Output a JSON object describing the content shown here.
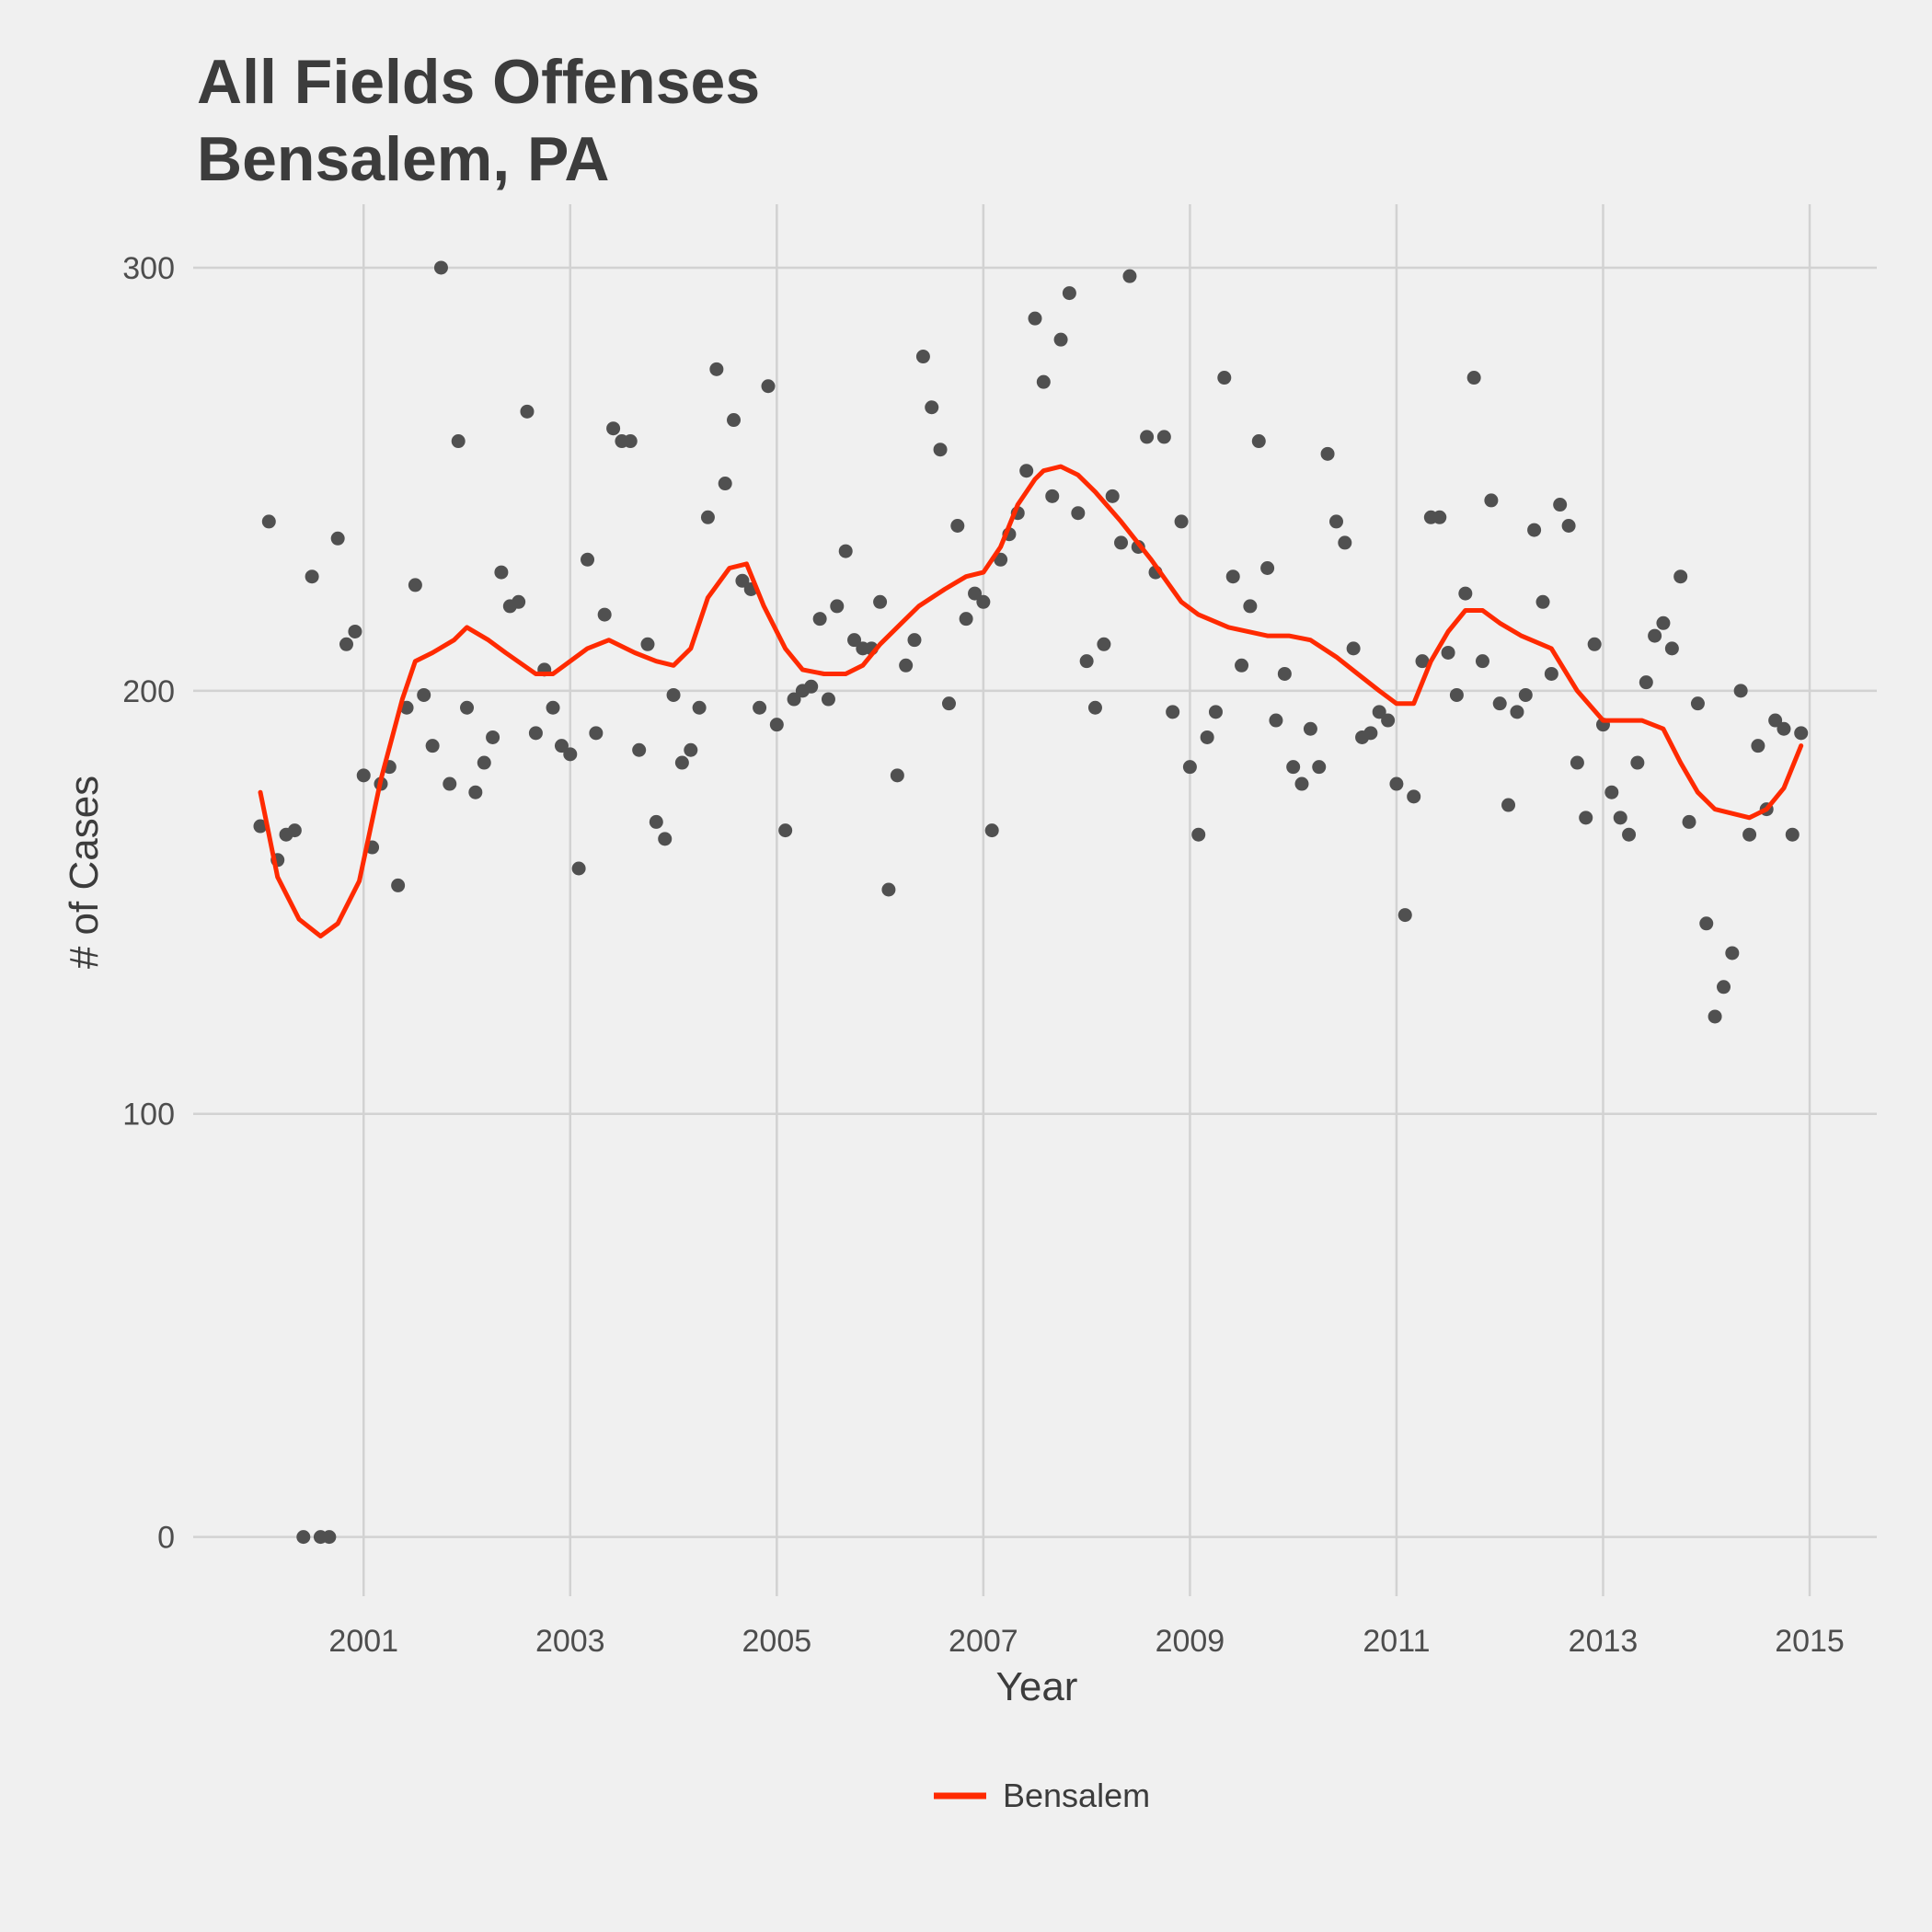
{
  "chart_data": {
    "type": "scatter",
    "title": "All Fields Offenses",
    "subtitle": "Bensalem, PA",
    "xlabel": "Year",
    "ylabel": "# of Cases",
    "xlim": [
      1999.35,
      2015.65
    ],
    "ylim": [
      -14,
      315
    ],
    "x_ticks": [
      2001,
      2003,
      2005,
      2007,
      2009,
      2011,
      2013,
      2015
    ],
    "y_ticks": [
      0,
      100,
      200,
      300
    ],
    "grid": true,
    "legend_position": "bottom",
    "colors": {
      "background": "#f0f0f0",
      "grid": "#d2d2d2",
      "points": "#505050",
      "line": "#ff2a00"
    },
    "series": [
      {
        "kind": "points",
        "x": [
          2000.0,
          2000.083,
          2000.167,
          2000.25,
          2000.333,
          2000.417,
          2000.5,
          2000.583,
          2000.667,
          2000.75,
          2000.833,
          2000.917,
          2001.0,
          2001.083,
          2001.167,
          2001.25,
          2001.333,
          2001.417,
          2001.5,
          2001.583,
          2001.667,
          2001.75,
          2001.833,
          2001.917,
          2002.0,
          2002.083,
          2002.167,
          2002.25,
          2002.333,
          2002.417,
          2002.5,
          2002.583,
          2002.667,
          2002.75,
          2002.833,
          2002.917,
          2003.0,
          2003.083,
          2003.167,
          2003.25,
          2003.333,
          2003.417,
          2003.5,
          2003.583,
          2003.667,
          2003.75,
          2003.833,
          2003.917,
          2004.0,
          2004.083,
          2004.167,
          2004.25,
          2004.333,
          2004.417,
          2004.5,
          2004.583,
          2004.667,
          2004.75,
          2004.833,
          2004.917,
          2005.0,
          2005.083,
          2005.167,
          2005.25,
          2005.333,
          2005.417,
          2005.5,
          2005.583,
          2005.667,
          2005.75,
          2005.833,
          2005.917,
          2006.0,
          2006.083,
          2006.167,
          2006.25,
          2006.333,
          2006.417,
          2006.5,
          2006.583,
          2006.667,
          2006.75,
          2006.833,
          2006.917,
          2007.0,
          2007.083,
          2007.167,
          2007.25,
          2007.333,
          2007.417,
          2007.5,
          2007.583,
          2007.667,
          2007.75,
          2007.833,
          2007.917,
          2008.0,
          2008.083,
          2008.167,
          2008.25,
          2008.333,
          2008.417,
          2008.5,
          2008.583,
          2008.667,
          2008.75,
          2008.833,
          2008.917,
          2009.0,
          2009.083,
          2009.167,
          2009.25,
          2009.333,
          2009.417,
          2009.5,
          2009.583,
          2009.667,
          2009.75,
          2009.833,
          2009.917,
          2010.0,
          2010.083,
          2010.167,
          2010.25,
          2010.333,
          2010.417,
          2010.5,
          2010.583,
          2010.667,
          2010.75,
          2010.833,
          2010.917,
          2011.0,
          2011.083,
          2011.167,
          2011.25,
          2011.333,
          2011.417,
          2011.5,
          2011.583,
          2011.667,
          2011.75,
          2011.833,
          2011.917,
          2012.0,
          2012.083,
          2012.167,
          2012.25,
          2012.333,
          2012.417,
          2012.5,
          2012.583,
          2012.667,
          2012.75,
          2012.833,
          2012.917,
          2013.0,
          2013.083,
          2013.167,
          2013.25,
          2013.333,
          2013.417,
          2013.5,
          2013.583,
          2013.667,
          2013.75,
          2013.833,
          2013.917,
          2014.0,
          2014.083,
          2014.167,
          2014.25,
          2014.333,
          2014.417,
          2014.5,
          2014.583,
          2014.667,
          2014.75,
          2014.833,
          2014.917
        ],
        "y": [
          168,
          240,
          160,
          166,
          167,
          0,
          227,
          0,
          0,
          236,
          211,
          214,
          180,
          163,
          178,
          182,
          154,
          196,
          225,
          199,
          187,
          300,
          178,
          259,
          196,
          176,
          183,
          189,
          228,
          220,
          221,
          266,
          190,
          205,
          196,
          187,
          185,
          158,
          231,
          190,
          218,
          262,
          259,
          259,
          186,
          211,
          169,
          165,
          199,
          183,
          186,
          196,
          241,
          276,
          249,
          264,
          226,
          224,
          196,
          272,
          192,
          167,
          198,
          200,
          201,
          217,
          198,
          220,
          233,
          212,
          210,
          210,
          221,
          153,
          180,
          206,
          212,
          279,
          267,
          257,
          197,
          239,
          217,
          223,
          221,
          167,
          231,
          237,
          242,
          252,
          288,
          273,
          246,
          283,
          294,
          242,
          207,
          196,
          211,
          246,
          235,
          298,
          234,
          260,
          228,
          260,
          195,
          240,
          182,
          166,
          189,
          195,
          274,
          227,
          206,
          220,
          259,
          229,
          193,
          204,
          182,
          178,
          191,
          182,
          256,
          240,
          235,
          210,
          189,
          190,
          195,
          193,
          178,
          147,
          175,
          207,
          241,
          241,
          209,
          199,
          223,
          274,
          207,
          245,
          197,
          173,
          195,
          199,
          238,
          221,
          204,
          244,
          239,
          183,
          170,
          211,
          192,
          176,
          170,
          166,
          183,
          202,
          213,
          216,
          210,
          227,
          169,
          197,
          145,
          123,
          130,
          138,
          200,
          166,
          187,
          172,
          193,
          191,
          166,
          190
        ]
      },
      {
        "kind": "line",
        "name": "Bensalem",
        "x": [
          2000.0,
          2000.167,
          2000.375,
          2000.583,
          2000.75,
          2000.958,
          2001.167,
          2001.375,
          2001.5,
          2001.667,
          2001.875,
          2002.0,
          2002.208,
          2002.375,
          2002.667,
          2002.833,
          2003.167,
          2003.375,
          2003.625,
          2003.833,
          2004.0,
          2004.167,
          2004.333,
          2004.542,
          2004.708,
          2004.875,
          2005.083,
          2005.25,
          2005.458,
          2005.667,
          2005.833,
          2006.0,
          2006.208,
          2006.375,
          2006.625,
          2006.833,
          2007.0,
          2007.167,
          2007.333,
          2007.5,
          2007.583,
          2007.75,
          2007.917,
          2008.083,
          2008.333,
          2008.625,
          2008.917,
          2009.083,
          2009.375,
          2009.75,
          2009.958,
          2010.167,
          2010.417,
          2010.625,
          2010.833,
          2011.0,
          2011.167,
          2011.333,
          2011.5,
          2011.667,
          2011.833,
          2012.0,
          2012.208,
          2012.5,
          2012.75,
          2013.0,
          2013.208,
          2013.375,
          2013.583,
          2013.75,
          2013.917,
          2014.083,
          2014.25,
          2014.417,
          2014.583,
          2014.75,
          2014.917
        ],
        "y": [
          176,
          156,
          146,
          142,
          145,
          155,
          179,
          198,
          207,
          209,
          212,
          215,
          212,
          209,
          204,
          204,
          210,
          212,
          209,
          207,
          206,
          210,
          222,
          229,
          230,
          220,
          210,
          205,
          204,
          204,
          206,
          211,
          216,
          220,
          224,
          227,
          228,
          234,
          244,
          250,
          252,
          253,
          251,
          247,
          240,
          231,
          221,
          218,
          215,
          213,
          213,
          212,
          208,
          204,
          200,
          197,
          197,
          207,
          214,
          219,
          219,
          216,
          213,
          210,
          200,
          193,
          193,
          193,
          191,
          183,
          176,
          172,
          171,
          170,
          172,
          177,
          187
        ]
      }
    ],
    "legend": [
      {
        "name": "Bensalem"
      }
    ]
  }
}
